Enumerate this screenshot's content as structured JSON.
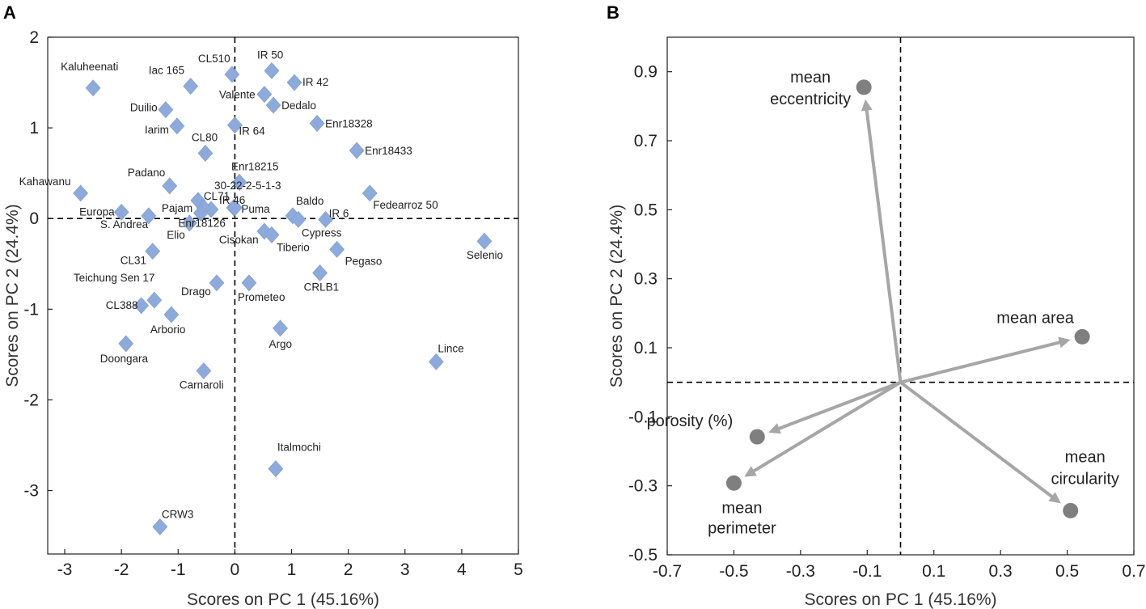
{
  "panels": {
    "a_label": "A",
    "b_label": "B"
  },
  "chart_data": [
    {
      "type": "scatter",
      "panel": "A",
      "title": "",
      "xlabel": "Scores on PC 1 (45.16%)",
      "ylabel": "Scores on PC 2 (24.4%)",
      "xlim": [
        -3.3,
        5.0
      ],
      "ylim": [
        -3.7,
        2.0
      ],
      "xticks": [
        -3,
        -2,
        -1,
        0,
        1,
        2,
        3,
        4,
        5
      ],
      "yticks": [
        -3,
        -2,
        -1,
        0,
        1,
        2
      ],
      "marker": "diamond",
      "color": "#8eaadb",
      "points": [
        {
          "x": -2.5,
          "y": 1.44,
          "label": "Kaluheenati"
        },
        {
          "x": -0.78,
          "y": 1.46,
          "label": "Iac 165"
        },
        {
          "x": -0.05,
          "y": 1.59,
          "label": "CL510"
        },
        {
          "x": 0.65,
          "y": 1.63,
          "label": "IR 50"
        },
        {
          "x": 1.05,
          "y": 1.5,
          "label": "IR 42"
        },
        {
          "x": 0.52,
          "y": 1.37,
          "label": "Valente"
        },
        {
          "x": 0.68,
          "y": 1.25,
          "label": "Dedalo"
        },
        {
          "x": -1.22,
          "y": 1.2,
          "label": "Duilio"
        },
        {
          "x": -1.02,
          "y": 1.02,
          "label": "Iarim"
        },
        {
          "x": 0.0,
          "y": 1.03,
          "label": "IR 64"
        },
        {
          "x": 1.45,
          "y": 1.05,
          "label": "Enr18328"
        },
        {
          "x": -0.52,
          "y": 0.72,
          "label": "CL80"
        },
        {
          "x": 2.15,
          "y": 0.75,
          "label": "Enr18433"
        },
        {
          "x": 0.08,
          "y": 0.4,
          "label": "Enr18215"
        },
        {
          "x": -1.15,
          "y": 0.36,
          "label": "Padano"
        },
        {
          "x": -2.72,
          "y": 0.28,
          "label": "Kahawanu"
        },
        {
          "x": 2.38,
          "y": 0.28,
          "label": "Fedearroz 50"
        },
        {
          "x": -0.65,
          "y": 0.2,
          "label": "CL71"
        },
        {
          "x": -0.42,
          "y": 0.1,
          "label": "IR 46"
        },
        {
          "x": -0.55,
          "y": 0.12,
          "label": "Pajam"
        },
        {
          "x": -2.0,
          "y": 0.07,
          "label": "Europa"
        },
        {
          "x": -1.52,
          "y": 0.03,
          "label": "S. Andrea"
        },
        {
          "x": -0.8,
          "y": -0.05,
          "label": "Elio"
        },
        {
          "x": -0.6,
          "y": 0.06,
          "label": "Enr18126"
        },
        {
          "x": -0.02,
          "y": 0.12,
          "label": "30-22-2-5-1-3"
        },
        {
          "x": 0.0,
          "y": 0.12,
          "label": "Puma"
        },
        {
          "x": 1.02,
          "y": 0.03,
          "label": "Baldo"
        },
        {
          "x": 1.12,
          "y": -0.01,
          "label": "Cypress"
        },
        {
          "x": 1.6,
          "y": -0.01,
          "label": "IR 6"
        },
        {
          "x": 0.52,
          "y": -0.14,
          "label": "Cisokan"
        },
        {
          "x": 0.65,
          "y": -0.18,
          "label": "Tiberio"
        },
        {
          "x": 1.8,
          "y": -0.34,
          "label": "Pegaso"
        },
        {
          "x": 4.4,
          "y": -0.25,
          "label": "Selenio"
        },
        {
          "x": -1.45,
          "y": -0.36,
          "label": "CL31"
        },
        {
          "x": 1.5,
          "y": -0.6,
          "label": "CRLB1"
        },
        {
          "x": -0.32,
          "y": -0.71,
          "label": "Drago"
        },
        {
          "x": 0.25,
          "y": -0.71,
          "label": "Prometeo"
        },
        {
          "x": -1.42,
          "y": -0.9,
          "label": "Teichung Sen 17"
        },
        {
          "x": -1.65,
          "y": -0.96,
          "label": "CL388"
        },
        {
          "x": -1.12,
          "y": -1.06,
          "label": "Arborio"
        },
        {
          "x": 0.8,
          "y": -1.21,
          "label": "Argo"
        },
        {
          "x": -1.92,
          "y": -1.38,
          "label": "Doongara"
        },
        {
          "x": 3.55,
          "y": -1.58,
          "label": "Lince"
        },
        {
          "x": -0.55,
          "y": -1.68,
          "label": "Carnaroli"
        },
        {
          "x": 0.72,
          "y": -2.76,
          "label": "Italmochi"
        },
        {
          "x": -1.32,
          "y": -3.4,
          "label": "CRW3"
        }
      ]
    },
    {
      "type": "scatter",
      "panel": "B",
      "subtype": "loadings-biplot",
      "title": "",
      "xlabel": "Scores on PC 1 (45.16%)",
      "ylabel": "Scores on PC 2 (24.4%)",
      "xlim": [
        -0.7,
        0.7
      ],
      "ylim": [
        -0.5,
        1.0
      ],
      "xticks": [
        -0.7,
        -0.5,
        -0.3,
        -0.1,
        0.1,
        0.3,
        0.5,
        0.7
      ],
      "xtick_labels": [
        "-0.7",
        "-0.5",
        "-0.3",
        "-0.1",
        "0.1",
        "0.3",
        "0.5",
        "0.7"
      ],
      "yticks": [
        -0.5,
        -0.3,
        -0.1,
        0.1,
        0.3,
        0.5,
        0.7,
        0.9
      ],
      "ytick_labels": [
        "-0.5",
        "-0.3",
        "-0.1",
        "0.1",
        "0.3",
        "0.5",
        "0.7",
        "0.9"
      ],
      "color": "#7f7f7f",
      "arrow_color": "#a6a6a6",
      "points": [
        {
          "x": -0.11,
          "y": 0.855,
          "label": "mean eccentricity",
          "lines": [
            "mean",
            "eccentricity"
          ]
        },
        {
          "x": 0.545,
          "y": 0.132,
          "label": "mean area",
          "lines": [
            "mean area"
          ]
        },
        {
          "x": -0.43,
          "y": -0.158,
          "label": "porosity (%)",
          "lines": [
            "porosity (%)"
          ]
        },
        {
          "x": -0.5,
          "y": -0.292,
          "label": "mean perimeter",
          "lines": [
            "mean",
            "perimeter"
          ]
        },
        {
          "x": 0.51,
          "y": -0.372,
          "label": "mean circularity",
          "lines": [
            "mean",
            "circularity"
          ]
        }
      ]
    }
  ]
}
